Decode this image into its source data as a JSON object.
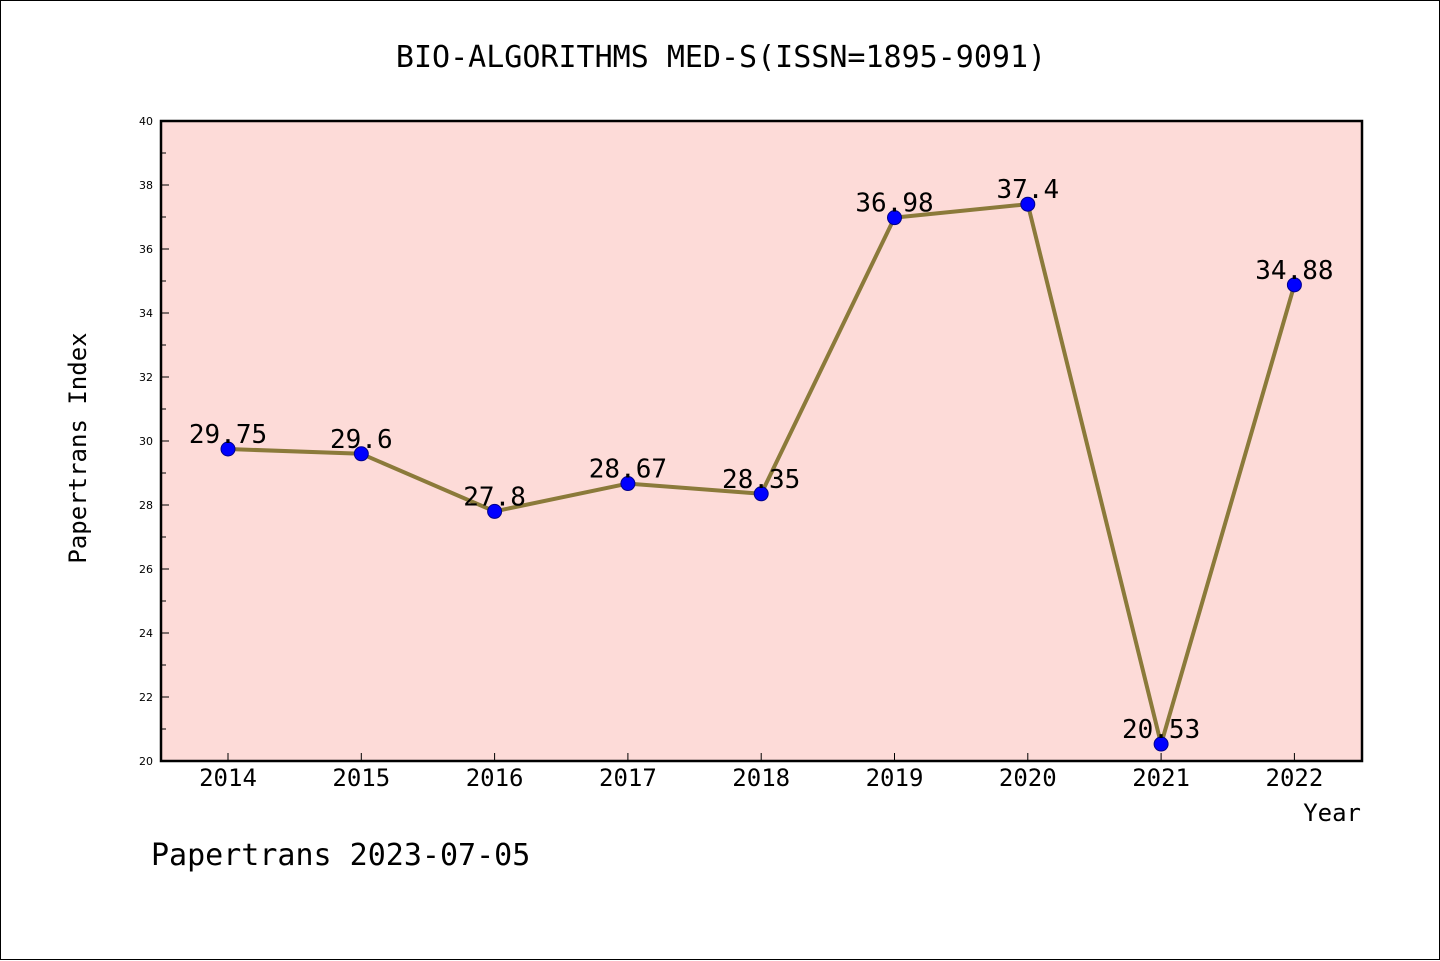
{
  "chart_data": {
    "type": "line",
    "title": "BIO-ALGORITHMS MED-S(ISSN=1895-9091)",
    "xlabel": "Year",
    "ylabel": "Papertrans Index",
    "categories": [
      "2014",
      "2015",
      "2016",
      "2017",
      "2018",
      "2019",
      "2020",
      "2021",
      "2022"
    ],
    "series": [
      {
        "values": [
          29.75,
          29.6,
          27.8,
          28.67,
          28.35,
          36.98,
          37.4,
          20.53,
          34.88
        ],
        "labels": [
          "29.75",
          "29.6",
          "27.8",
          "28.67",
          "28.35",
          "36.98",
          "37.4",
          "20.53",
          "34.88"
        ]
      }
    ],
    "ylim": [
      20,
      40
    ],
    "yticks": [
      20,
      22,
      24,
      26,
      28,
      30,
      32,
      34,
      36,
      38,
      40
    ],
    "grid": false,
    "colors": {
      "plot_background": "#fddbd8",
      "line": "#8b7a3a",
      "marker": "#0000ff",
      "marker_edge": "#00008b"
    }
  },
  "footer": "Papertrans 2023-07-05"
}
